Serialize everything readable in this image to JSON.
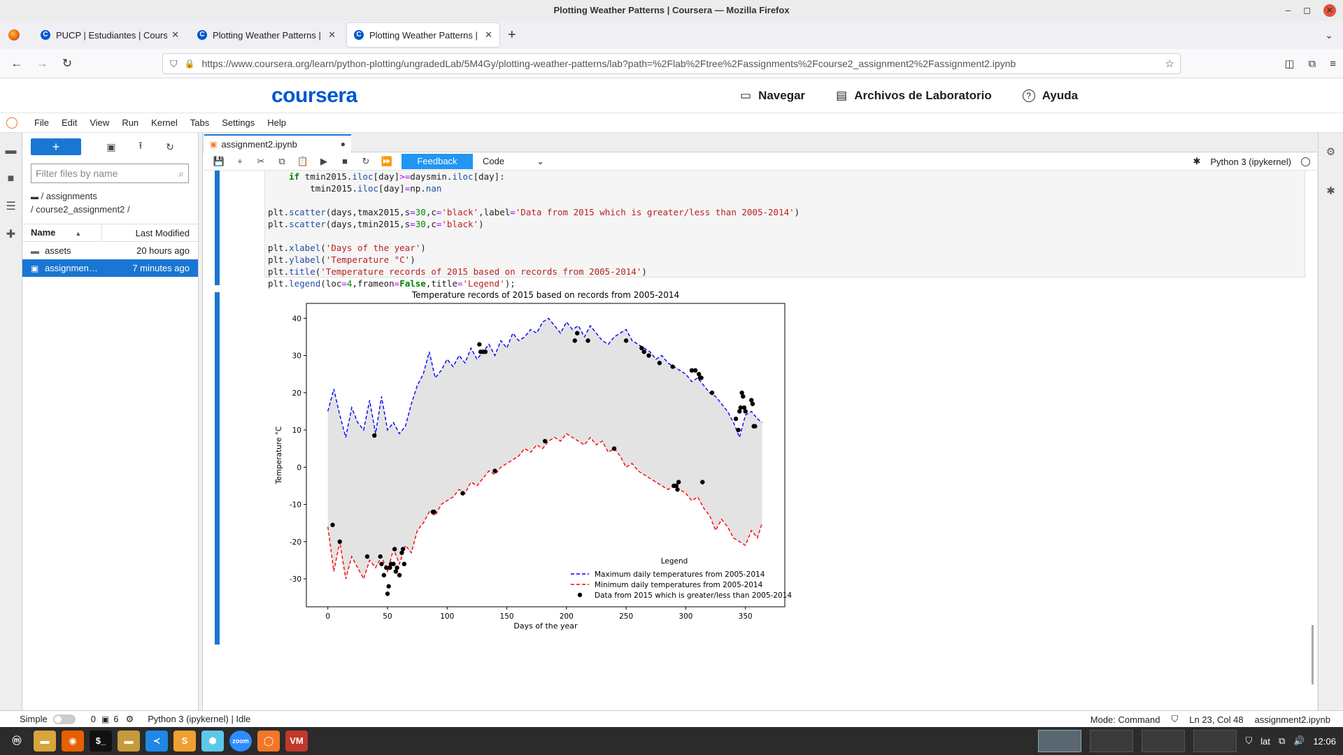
{
  "window": {
    "title": "Plotting Weather Patterns | Coursera — Mozilla Firefox",
    "controls": {
      "minimize": "–",
      "maximize": "◻",
      "close": "✕"
    }
  },
  "tabs": [
    {
      "label": "PUCP | Estudiantes | Course",
      "close": "✕",
      "icon": "coursera-icon"
    },
    {
      "label": "Plotting Weather Patterns |",
      "close": "✕",
      "icon": "coursera-icon"
    },
    {
      "label": "Plotting Weather Patterns |",
      "close": "✕",
      "icon": "coursera-icon",
      "active": true
    }
  ],
  "newtab": "+",
  "tablist": "⌄",
  "nav": {
    "back": "←",
    "forward": "→",
    "reload": "↻",
    "url": "https://www.coursera.org/learn/python-plotting/ungradedLab/5M4Gy/plotting-weather-patterns/lab?path=%2Flab%2Ftree%2Fassignments%2Fcourse2_assignment2%2Fassignment2.ipynb",
    "shield": "⛉",
    "lock": "🔒",
    "star": "☆",
    "pocket": "◫",
    "extensions": "⧉",
    "menu": "≡"
  },
  "coursera": {
    "logo": "coursera",
    "nav": [
      {
        "icon": "▭",
        "label": "Navegar"
      },
      {
        "icon": "▤",
        "label": "Archivos de Laboratorio"
      },
      {
        "icon": "?",
        "label": "Ayuda"
      }
    ]
  },
  "jupyter": {
    "logo": "◯",
    "menu": [
      "File",
      "Edit",
      "View",
      "Run",
      "Kernel",
      "Tabs",
      "Settings",
      "Help"
    ]
  },
  "left_sidebar": [
    "▬",
    "■",
    "☰",
    "✚"
  ],
  "filebrowser": {
    "new": "+",
    "tools": [
      "▣",
      "⭱",
      "↻"
    ],
    "filter_placeholder": "Filter files by name",
    "filter_icon": "⌕",
    "crumb1": "/ assignments",
    "crumb2": "/ course2_assignment2 /",
    "col_name": "Name",
    "col_sort": "▲",
    "col_modified": "Last Modified",
    "rows": [
      {
        "icon": "▬",
        "name": "assets",
        "modified": "20 hours ago"
      },
      {
        "icon": "▣",
        "name": "assignmen…",
        "modified": "7 minutes ago",
        "selected": true
      }
    ]
  },
  "notebook": {
    "tab_label": "assignment2.ipynb",
    "tab_icon": "▣",
    "dirty": "●",
    "toolbar": [
      "💾",
      "+",
      "✂",
      "⧉",
      "📋",
      "▶",
      "■",
      "↻",
      "⏩"
    ],
    "feedback": "Feedback",
    "cell_type": "Code",
    "cell_type_arrow": "⌄",
    "kernel_bug": "✱",
    "kernel": "Python 3 (ipykernel)"
  },
  "code_lines": [
    [
      {
        "t": "    "
      },
      {
        "t": "if",
        "c": "kw"
      },
      {
        "t": " tmin2015."
      },
      {
        "t": "iloc",
        "c": "at"
      },
      {
        "t": "[day]"
      },
      {
        "t": ">=",
        "c": "op"
      },
      {
        "t": "daysmin."
      },
      {
        "t": "iloc",
        "c": "at"
      },
      {
        "t": "[day]:"
      }
    ],
    [
      {
        "t": "        tmin2015."
      },
      {
        "t": "iloc",
        "c": "at"
      },
      {
        "t": "[day]"
      },
      {
        "t": "=",
        "c": "op"
      },
      {
        "t": "np."
      },
      {
        "t": "nan",
        "c": "at"
      }
    ],
    [
      {
        "t": ""
      }
    ],
    [
      {
        "t": "plt."
      },
      {
        "t": "scatter",
        "c": "at"
      },
      {
        "t": "(days,tmax2015,s"
      },
      {
        "t": "=",
        "c": "op"
      },
      {
        "t": "30",
        "c": "nm"
      },
      {
        "t": ",c"
      },
      {
        "t": "=",
        "c": "op"
      },
      {
        "t": "'black'",
        "c": "st"
      },
      {
        "t": ",label"
      },
      {
        "t": "=",
        "c": "op"
      },
      {
        "t": "'Data from 2015 which is greater/less than 2005-2014'",
        "c": "st"
      },
      {
        "t": ")"
      }
    ],
    [
      {
        "t": "plt."
      },
      {
        "t": "scatter",
        "c": "at"
      },
      {
        "t": "(days,tmin2015,s"
      },
      {
        "t": "=",
        "c": "op"
      },
      {
        "t": "30",
        "c": "nm"
      },
      {
        "t": ",c"
      },
      {
        "t": "=",
        "c": "op"
      },
      {
        "t": "'black'",
        "c": "st"
      },
      {
        "t": ")"
      }
    ],
    [
      {
        "t": ""
      }
    ],
    [
      {
        "t": "plt."
      },
      {
        "t": "xlabel",
        "c": "at"
      },
      {
        "t": "("
      },
      {
        "t": "'Days of the year'",
        "c": "st"
      },
      {
        "t": ")"
      }
    ],
    [
      {
        "t": "plt."
      },
      {
        "t": "ylabel",
        "c": "at"
      },
      {
        "t": "("
      },
      {
        "t": "'Temperature °C'",
        "c": "st"
      },
      {
        "t": ")"
      }
    ],
    [
      {
        "t": "plt."
      },
      {
        "t": "title",
        "c": "at"
      },
      {
        "t": "("
      },
      {
        "t": "'Temperature records of 2015 based on records from 2005-2014'",
        "c": "st"
      },
      {
        "t": ")"
      }
    ],
    [
      {
        "t": "plt."
      },
      {
        "t": "legend",
        "c": "at"
      },
      {
        "t": "(loc"
      },
      {
        "t": "=",
        "c": "op"
      },
      {
        "t": "4",
        "c": "nm"
      },
      {
        "t": ",frameon"
      },
      {
        "t": "=",
        "c": "op"
      },
      {
        "t": "False",
        "c": "kw"
      },
      {
        "t": ",title"
      },
      {
        "t": "=",
        "c": "op"
      },
      {
        "t": "'Legend'",
        "c": "st"
      },
      {
        "t": ");"
      }
    ]
  ],
  "chart_data": {
    "type": "line",
    "title": "Temperature records of 2015 based on records from 2005-2014",
    "xlabel": "Days of the year",
    "ylabel": "Temperature °C",
    "xlim": [
      -18,
      383
    ],
    "ylim": [
      -37.5,
      44
    ],
    "xticks": [
      0,
      50,
      100,
      150,
      200,
      250,
      300,
      350
    ],
    "yticks": [
      -30,
      -20,
      -10,
      0,
      10,
      20,
      30,
      40
    ],
    "legend_title": "Legend",
    "legend_position": "lower-right",
    "fill_between": true,
    "colors": {
      "max": "#0000ff",
      "min": "#ff0000",
      "scatter": "#000000",
      "fill": "#e3e3e3"
    },
    "series": [
      {
        "name": "Maximum daily temperatures from 2005-2014",
        "style": "dashed",
        "x": [
          0,
          5,
          10,
          15,
          20,
          25,
          30,
          35,
          40,
          45,
          50,
          55,
          60,
          65,
          70,
          75,
          80,
          85,
          90,
          95,
          100,
          105,
          110,
          115,
          120,
          125,
          130,
          135,
          140,
          145,
          150,
          155,
          160,
          165,
          170,
          175,
          180,
          185,
          190,
          195,
          200,
          205,
          210,
          215,
          220,
          225,
          230,
          235,
          240,
          245,
          250,
          255,
          260,
          265,
          270,
          275,
          280,
          285,
          290,
          295,
          300,
          305,
          310,
          315,
          320,
          325,
          330,
          335,
          340,
          345,
          350,
          355,
          360,
          364
        ],
        "values": [
          15,
          21,
          14,
          8,
          16,
          12,
          10,
          18,
          9,
          19,
          10,
          12,
          9,
          11,
          17,
          22,
          25,
          31,
          24,
          26,
          29,
          27,
          30,
          28,
          32,
          29,
          31,
          33,
          30,
          34,
          32,
          36,
          34,
          35,
          37,
          36,
          39,
          40,
          38,
          36,
          39,
          37,
          38,
          35,
          38,
          36,
          34,
          33,
          35,
          36,
          37,
          34,
          33,
          32,
          31,
          29,
          30,
          28,
          27,
          26,
          25,
          23,
          24,
          22,
          20,
          19,
          17,
          15,
          12,
          8,
          14,
          15,
          13,
          12
        ]
      },
      {
        "name": "Minimum daily temperatures from 2005-2014",
        "style": "dashed",
        "x": [
          0,
          5,
          10,
          15,
          20,
          25,
          30,
          35,
          40,
          45,
          50,
          55,
          60,
          65,
          70,
          75,
          80,
          85,
          90,
          95,
          100,
          105,
          110,
          115,
          120,
          125,
          130,
          135,
          140,
          145,
          150,
          155,
          160,
          165,
          170,
          175,
          180,
          185,
          190,
          195,
          200,
          205,
          210,
          215,
          220,
          225,
          230,
          235,
          240,
          245,
          250,
          255,
          260,
          265,
          270,
          275,
          280,
          285,
          290,
          295,
          300,
          305,
          310,
          315,
          320,
          325,
          330,
          335,
          340,
          345,
          350,
          355,
          360,
          364
        ],
        "values": [
          -16,
          -28,
          -20,
          -30,
          -24,
          -27,
          -30,
          -25,
          -27,
          -24,
          -28,
          -22,
          -26,
          -21,
          -23,
          -17,
          -15,
          -12,
          -13,
          -10,
          -9,
          -8,
          -6,
          -7,
          -4,
          -5,
          -3,
          -1,
          -2,
          0,
          1,
          2,
          3,
          5,
          4,
          6,
          5,
          7,
          8,
          7,
          9,
          8,
          7,
          6,
          8,
          6,
          7,
          4,
          5,
          3,
          0,
          1,
          -1,
          -2,
          -3,
          -4,
          -5,
          -6,
          -5,
          -6,
          -7,
          -9,
          -8,
          -11,
          -13,
          -17,
          -14,
          -16,
          -19,
          -20,
          -21,
          -17,
          -19,
          -15
        ]
      },
      {
        "name": "Data from 2015 which is greater/less than 2005-2014",
        "type": "scatter",
        "x": [
          4,
          10,
          33,
          39,
          44,
          45,
          47,
          49,
          50,
          51,
          52,
          53,
          55,
          56,
          57,
          58,
          60,
          62,
          63,
          64,
          88,
          89,
          113,
          127,
          128,
          130,
          132,
          140,
          182,
          207,
          209,
          218,
          240,
          250,
          263,
          265,
          269,
          278,
          289,
          290,
          291,
          292,
          293,
          294,
          305,
          308,
          311,
          312,
          313,
          314,
          322,
          342,
          344,
          345,
          346,
          347,
          348,
          349,
          350,
          355,
          356,
          357,
          358
        ],
        "values": [
          -15.5,
          -20,
          -24,
          8.5,
          -24,
          -26,
          -29,
          -27,
          -34,
          -32,
          -27,
          -26,
          -26,
          -22,
          -28,
          -27,
          -29,
          -23,
          -22,
          -26,
          -12,
          -12,
          -7,
          33,
          31,
          31,
          31,
          -1,
          7,
          34,
          36,
          34,
          5,
          34,
          32,
          31,
          30,
          28,
          27,
          -5,
          -5,
          -5,
          -6,
          -4,
          26,
          26,
          25,
          24,
          24,
          -4,
          20,
          13,
          10,
          15,
          16,
          20,
          19,
          16,
          15,
          18,
          17,
          11,
          11
        ]
      }
    ]
  },
  "status": {
    "mode_label": "Simple",
    "zero": "0",
    "term_icon": "▣",
    "six": "6",
    "gear_icon": "⚙",
    "kernel_status": "Python 3 (ipykernel) | Idle",
    "mode": "Mode: Command",
    "shield": "⛉",
    "position": "Ln 23, Col 48",
    "file": "assignment2.ipynb"
  },
  "taskbar": {
    "apps": [
      {
        "name": "mint-menu-icon",
        "glyph": "ⓜ",
        "color": "#2b2b2b"
      },
      {
        "name": "files-icon",
        "glyph": "▬",
        "color": "#d8a53a"
      },
      {
        "name": "firefox-icon",
        "glyph": "◉",
        "color": "#e66000"
      },
      {
        "name": "terminal-icon",
        "glyph": "$_",
        "color": "#111111"
      },
      {
        "name": "folder-icon",
        "glyph": "▬",
        "color": "#c49a3c"
      },
      {
        "name": "vscode-icon",
        "glyph": "≺",
        "color": "#1e88e5"
      },
      {
        "name": "sublime-icon",
        "glyph": "S",
        "color": "#f0a030"
      },
      {
        "name": "cube-icon",
        "glyph": "⬢",
        "color": "#5cc8e8"
      },
      {
        "name": "zoom-icon",
        "glyph": "zoom",
        "color": "#2d8cff"
      },
      {
        "name": "jupyter-icon",
        "glyph": "◯",
        "color": "#f37726"
      },
      {
        "name": "vm-icon",
        "glyph": "VM",
        "color": "#c0392b"
      }
    ],
    "lang": "lat",
    "clock": "12:06",
    "shield": "⛉",
    "network": "⧉",
    "volume": "🔊"
  }
}
